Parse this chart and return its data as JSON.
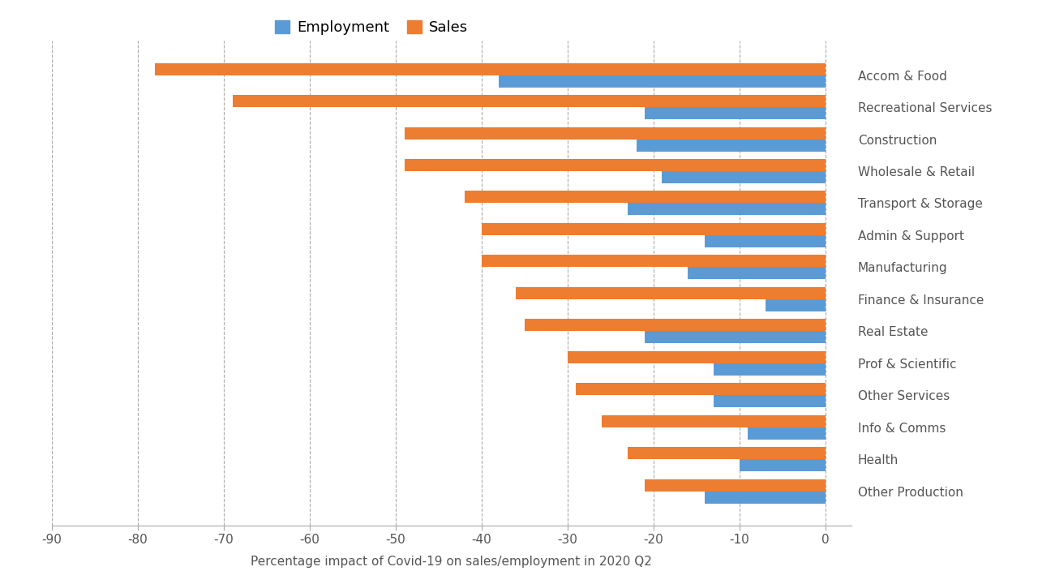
{
  "categories": [
    "Accom & Food",
    "Recreational Services",
    "Construction",
    "Wholesale & Retail",
    "Transport & Storage",
    "Admin & Support",
    "Manufacturing",
    "Finance & Insurance",
    "Real Estate",
    "Prof & Scientific",
    "Other Services",
    "Info & Comms",
    "Health",
    "Other Production"
  ],
  "employment": [
    -38,
    -21,
    -22,
    -19,
    -23,
    -14,
    -16,
    -7,
    -21,
    -13,
    -13,
    -9,
    -10,
    -14
  ],
  "sales": [
    -78,
    -69,
    -49,
    -49,
    -42,
    -40,
    -40,
    -36,
    -35,
    -30,
    -29,
    -26,
    -23,
    -21
  ],
  "employment_color": "#5B9BD5",
  "sales_color": "#ED7D31",
  "xlabel": "Percentage impact of Covid-19 on sales/employment in 2020 Q2",
  "xlim": [
    -90,
    3
  ],
  "xticks": [
    -90,
    -80,
    -70,
    -60,
    -50,
    -40,
    -30,
    -20,
    -10,
    0
  ],
  "legend_labels": [
    "Employment",
    "Sales"
  ],
  "background_color": "#FFFFFF",
  "grid_color": "#AAAAAA",
  "bar_height": 0.38,
  "label_fontsize": 11,
  "legend_fontsize": 13,
  "xlabel_fontsize": 11,
  "figsize": [
    12.8,
    7.2
  ],
  "dpi": 100
}
